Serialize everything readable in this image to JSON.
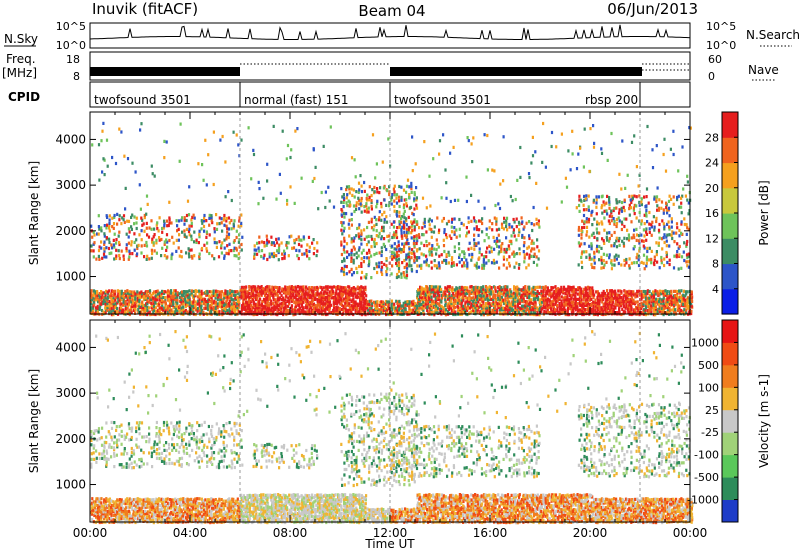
{
  "header": {
    "station": "Inuvik (fitACF)",
    "beam": "Beam 04",
    "date": "06/Jun/2013"
  },
  "top_panels": {
    "nsky_label": "N.Sky",
    "nsky_ticks": [
      "10^5",
      "10^0"
    ],
    "nsearch_label": "N.Search",
    "freq_label": "Freq.",
    "freq_unit": "[MHz]",
    "freq_ticks": [
      "18",
      "8"
    ],
    "nave_ticks": [
      "60",
      "0"
    ],
    "nave_label": "Nave",
    "cpid_label": "CPID",
    "cpid_segments": [
      {
        "label": "twofsound 3501",
        "start_h": 0,
        "end_h": 6
      },
      {
        "label": "normal (fast) 151",
        "start_h": 6,
        "end_h": 12
      },
      {
        "label": "twofsound 3501",
        "start_h": 12,
        "end_h": 22
      },
      {
        "label": "rbsp 200",
        "start_h": 22,
        "end_h": 24
      }
    ],
    "cpid_extra_label": {
      "label": "rbsp 200",
      "at_h": 19.8
    }
  },
  "chart_data": [
    {
      "type": "heatmap",
      "title": "Power",
      "xlabel": "",
      "ylabel": "Slant Range [km]",
      "xlim": [
        0,
        24
      ],
      "ylim": [
        180,
        4600
      ],
      "yticks": [
        "1000",
        "2000",
        "3000",
        "4000"
      ],
      "colorbar_label": "Power [dB]",
      "colorbar_ticks": [
        "4",
        "8",
        "12",
        "16",
        "20",
        "24",
        "28"
      ],
      "colorbar_colors": [
        "#0a1ee6",
        "#2d55c8",
        "#3c8c64",
        "#6ec35a",
        "#c8c83c",
        "#f5a01e",
        "#f0641e",
        "#e61e1e"
      ]
    },
    {
      "type": "heatmap",
      "title": "Velocity",
      "xlabel": "Time UT",
      "ylabel": "Slant Range [km]",
      "xlim": [
        0,
        24
      ],
      "ylim": [
        180,
        4600
      ],
      "xticks": [
        "00:00",
        "04:00",
        "08:00",
        "12:00",
        "16:00",
        "20:00",
        "00:00"
      ],
      "yticks": [
        "1000",
        "2000",
        "3000",
        "4000"
      ],
      "colorbar_label": "Velocity [m s-1]",
      "colorbar_ticks": [
        "1000",
        "500",
        "100",
        "25",
        "-25",
        "-100",
        "-500",
        "-1000"
      ],
      "colorbar_colors": [
        "#1e3cc8",
        "#2d8c5a",
        "#5ac85a",
        "#a0d278",
        "#c8c8c8",
        "#f0b432",
        "#f07d1e",
        "#f04b14",
        "#e61414"
      ]
    }
  ]
}
